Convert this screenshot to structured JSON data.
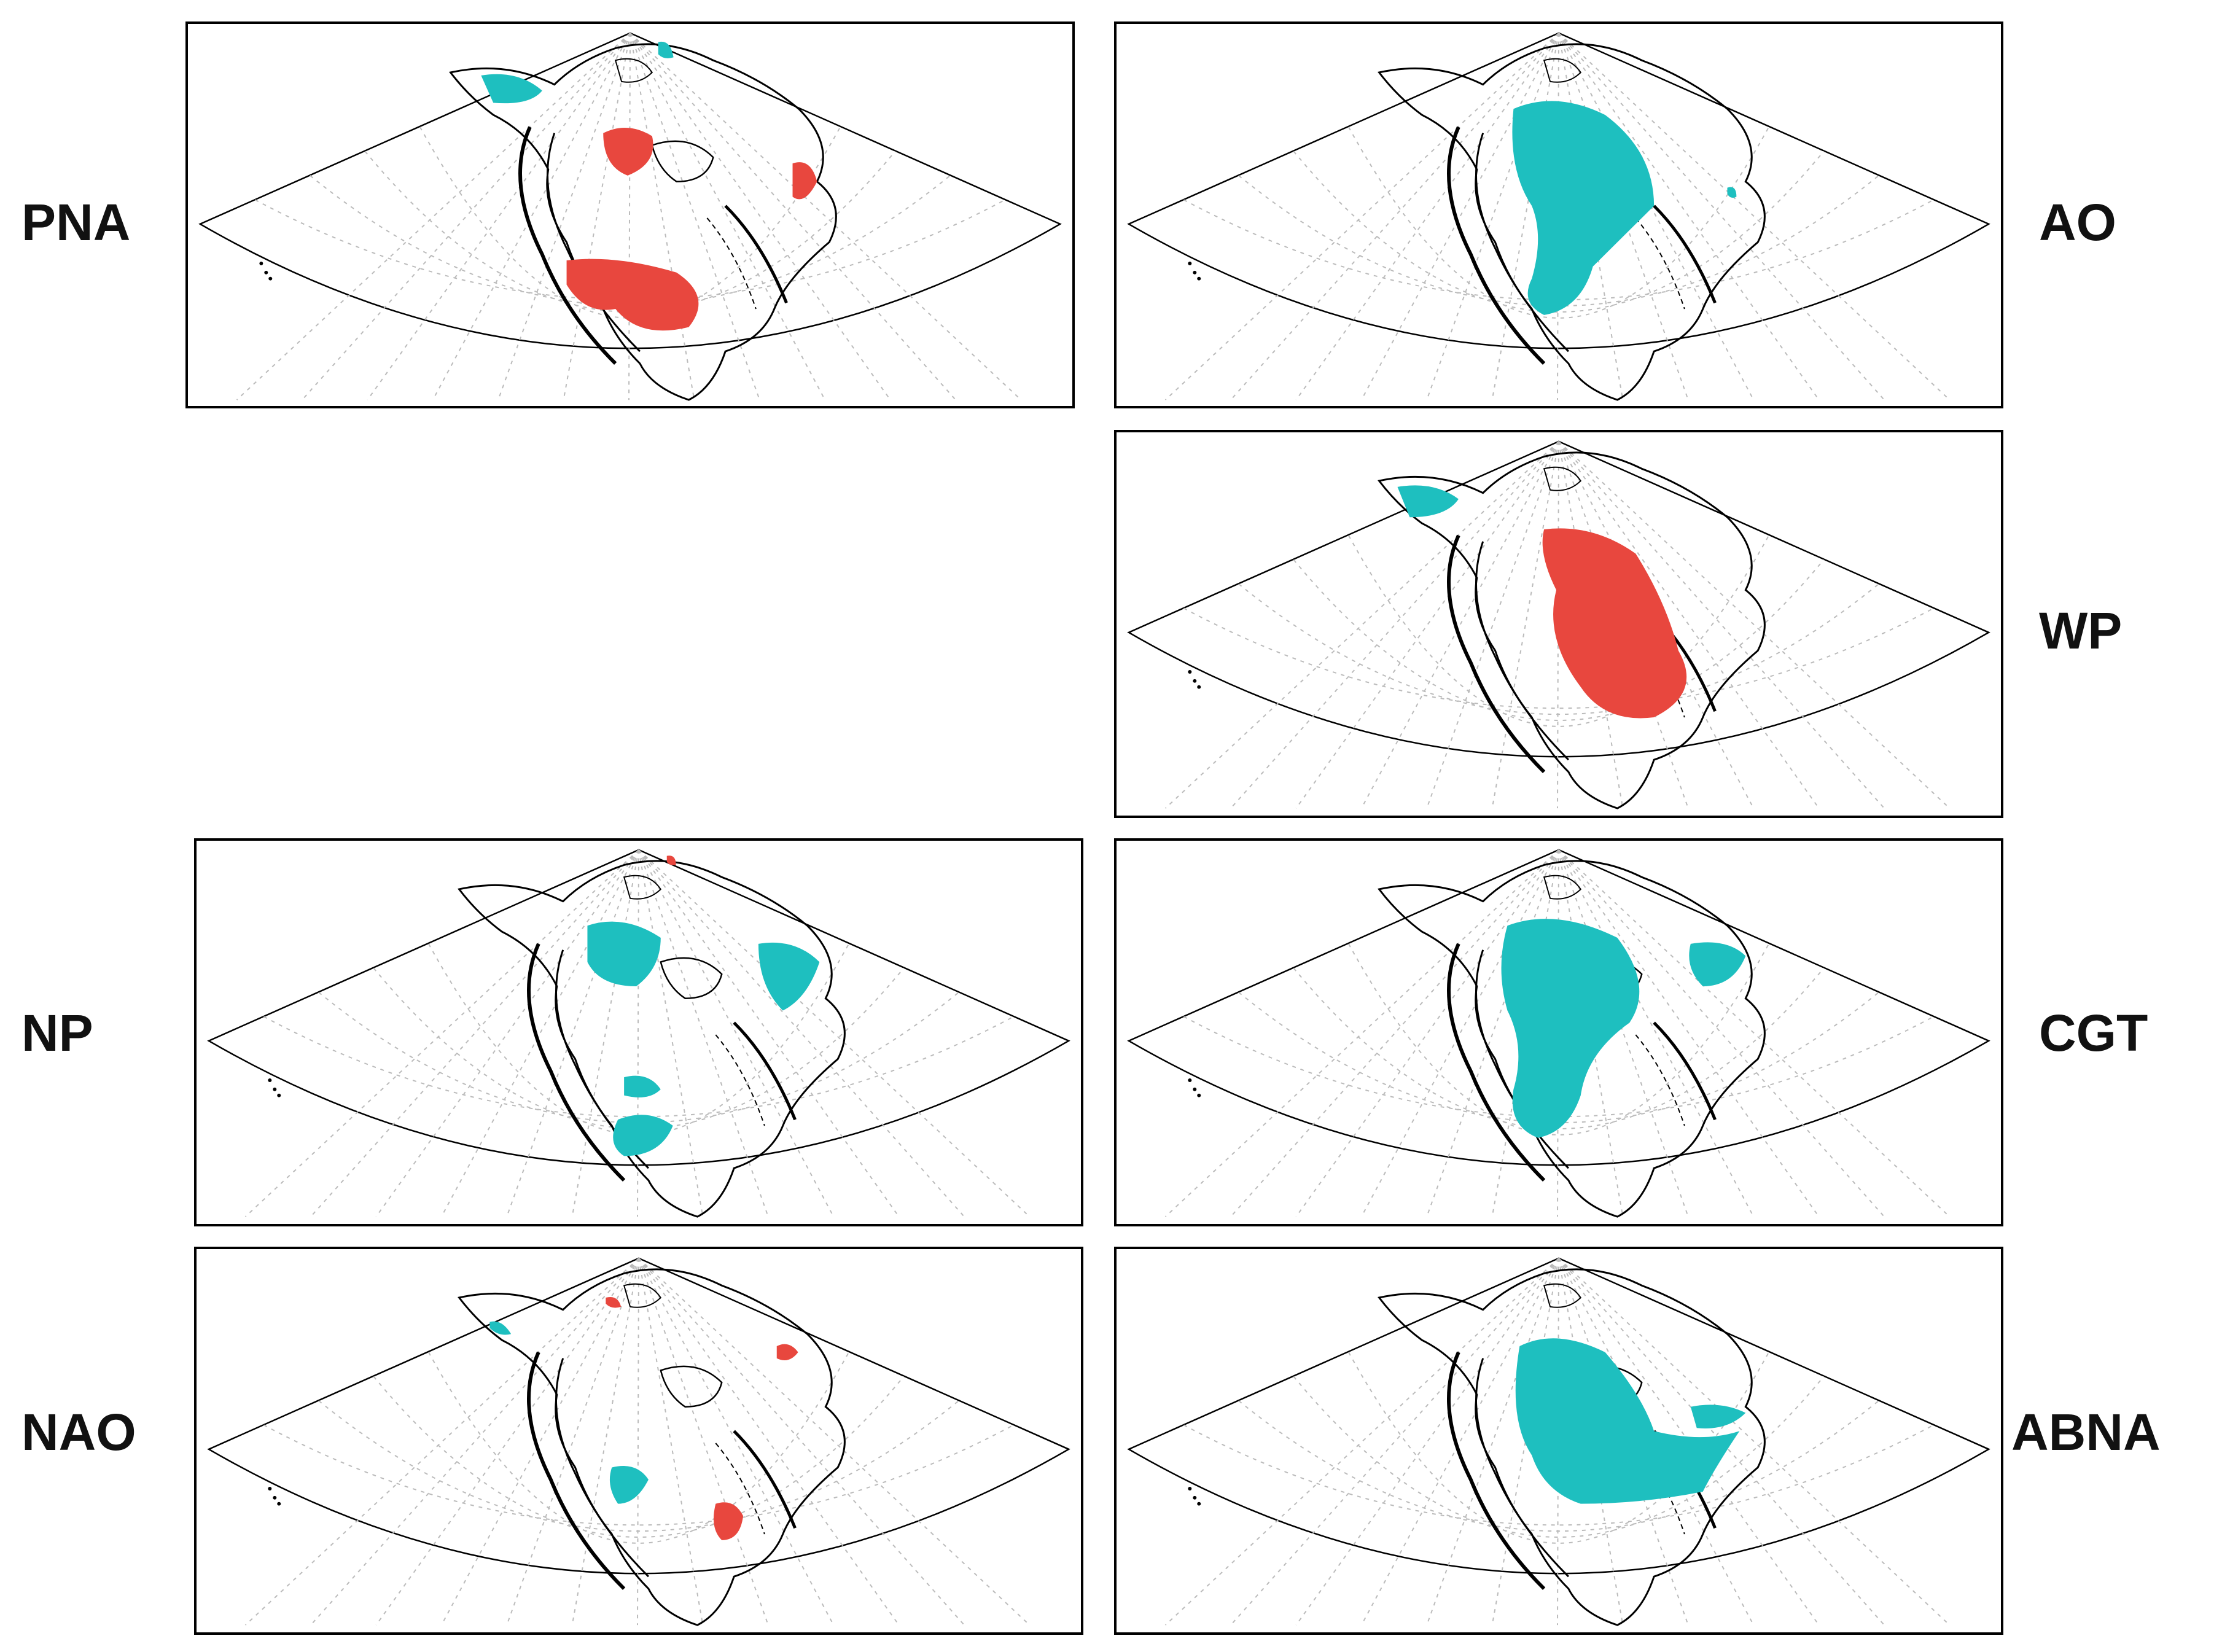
{
  "figure": {
    "panels": [
      {
        "id": "pna",
        "label": "PNA",
        "side": "left",
        "row": 1,
        "fill_colors": [
          "#e8473e",
          "#1ebfbf"
        ]
      },
      {
        "id": "ao",
        "label": "AO",
        "side": "right",
        "row": 1,
        "fill_colors": [
          "#1ebfbf"
        ]
      },
      {
        "id": "wp",
        "label": "WP",
        "side": "right",
        "row": 2,
        "fill_colors": [
          "#e8473e",
          "#1ebfbf"
        ]
      },
      {
        "id": "np",
        "label": "NP",
        "side": "left",
        "row": 3,
        "fill_colors": [
          "#1ebfbf",
          "#e8473e"
        ]
      },
      {
        "id": "cgt",
        "label": "CGT",
        "side": "right",
        "row": 3,
        "fill_colors": [
          "#1ebfbf"
        ]
      },
      {
        "id": "nao",
        "label": "NAO",
        "side": "left",
        "row": 4,
        "fill_colors": [
          "#e8473e",
          "#1ebfbf"
        ]
      },
      {
        "id": "abna",
        "label": "ABNA",
        "side": "right",
        "row": 4,
        "fill_colors": [
          "#1ebfbf"
        ]
      }
    ],
    "colors": {
      "positive": "#e8473e",
      "negative": "#1ebfbf",
      "line": "#000000",
      "grid": "#bbbbbb"
    }
  }
}
